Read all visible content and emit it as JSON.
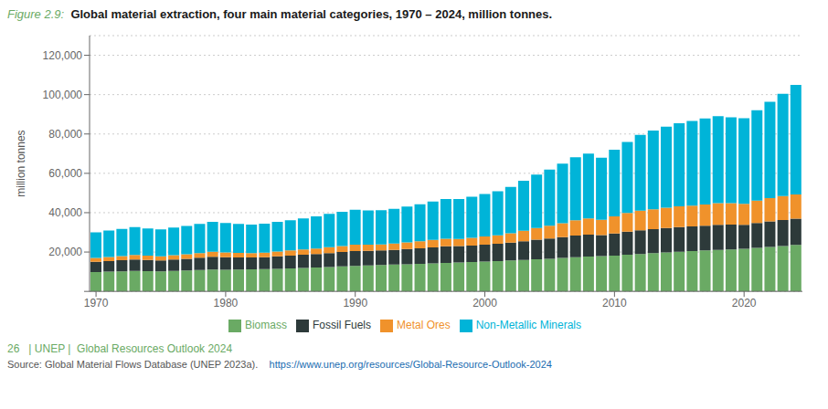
{
  "chart_data": {
    "type": "bar",
    "stacked": true,
    "title": "Global material extraction, four main material categories, 1970 – 2024, million tonnes.",
    "annotations": [
      "Figure 2.9:",
      "26   | UNEP |  Global Resources Outlook 2024",
      "Source: Global Material Flows Database (UNEP 2023a).",
      "https://www.unep.org/resources/Global-Resource-Outlook-2024"
    ],
    "ylabel": "million tonnes",
    "x": [
      1970,
      1971,
      1972,
      1973,
      1974,
      1975,
      1976,
      1977,
      1978,
      1979,
      1980,
      1981,
      1982,
      1983,
      1984,
      1985,
      1986,
      1987,
      1988,
      1989,
      1990,
      1991,
      1992,
      1993,
      1994,
      1995,
      1996,
      1997,
      1998,
      1999,
      2000,
      2001,
      2002,
      2003,
      2004,
      2005,
      2006,
      2007,
      2008,
      2009,
      2010,
      2011,
      2012,
      2013,
      2014,
      2015,
      2016,
      2017,
      2018,
      2019,
      2020,
      2021,
      2022,
      2023,
      2024
    ],
    "xlim": [
      1969.5,
      2024.5
    ],
    "xticks": [
      1970,
      1980,
      1990,
      2000,
      2010,
      2020
    ],
    "ylim": [
      0,
      130000
    ],
    "yticks": [
      {
        "value": 0,
        "label": ""
      },
      {
        "value": 20000,
        "label": "20,000"
      },
      {
        "value": 40000,
        "label": "40,000"
      },
      {
        "value": 60000,
        "label": "60,000"
      },
      {
        "value": 80000,
        "label": "80,000"
      },
      {
        "value": 100000,
        "label": "100,000"
      },
      {
        "value": 120000,
        "label": "120,000"
      }
    ],
    "grid": true,
    "legend": "bottom",
    "series": [
      {
        "name": "Biomass",
        "color": "#6aaa64",
        "values": [
          9800,
          10000,
          10200,
          10400,
          10300,
          10200,
          10400,
          10600,
          10900,
          11100,
          11000,
          11100,
          11200,
          11300,
          11500,
          11700,
          11900,
          12100,
          12400,
          12700,
          13000,
          13200,
          13400,
          13600,
          13800,
          14000,
          14200,
          14500,
          14700,
          14900,
          15200,
          15400,
          15700,
          16000,
          16300,
          16600,
          17000,
          17400,
          17700,
          17900,
          18200,
          18600,
          19000,
          19400,
          19800,
          20200,
          20500,
          20800,
          21100,
          21300,
          21600,
          22100,
          22600,
          23100,
          23600
        ]
      },
      {
        "name": "Fossil Fuels",
        "color": "#2d3a3a",
        "values": [
          5200,
          5400,
          5600,
          5800,
          5700,
          5500,
          5800,
          6000,
          6200,
          6500,
          6400,
          6200,
          6100,
          6100,
          6300,
          6500,
          6700,
          6900,
          7100,
          7300,
          7500,
          7400,
          7400,
          7500,
          7700,
          7900,
          8200,
          8400,
          8300,
          8400,
          8600,
          8800,
          9100,
          9500,
          10000,
          10300,
          10600,
          11000,
          11200,
          10700,
          11200,
          11800,
          12100,
          12200,
          12400,
          12500,
          12500,
          12600,
          12700,
          12600,
          12200,
          12700,
          13000,
          13200,
          13400
        ]
      },
      {
        "name": "Metal Ores",
        "color": "#f0922b",
        "values": [
          2000,
          2100,
          2200,
          2300,
          2200,
          2100,
          2200,
          2300,
          2400,
          2500,
          2400,
          2300,
          2200,
          2300,
          2500,
          2600,
          2700,
          2800,
          3000,
          3100,
          3200,
          3100,
          3100,
          3200,
          3400,
          3600,
          3800,
          3900,
          3700,
          3900,
          4100,
          4300,
          4700,
          5300,
          5900,
          6500,
          7100,
          7800,
          8200,
          7800,
          8700,
          9500,
          9900,
          10100,
          10300,
          10500,
          10600,
          10800,
          11000,
          10900,
          10700,
          11300,
          11800,
          12100,
          12300
        ]
      },
      {
        "name": "Non-Metallic Minerals",
        "color": "#00b4d8",
        "values": [
          13000,
          13400,
          13800,
          14200,
          13800,
          13700,
          14000,
          14400,
          14800,
          15200,
          15000,
          14700,
          14500,
          14700,
          15000,
          15400,
          15800,
          16300,
          16900,
          17400,
          17800,
          17500,
          17400,
          17600,
          18200,
          18800,
          19500,
          20100,
          20200,
          20900,
          21600,
          22400,
          23600,
          25400,
          27200,
          28500,
          30200,
          32000,
          32900,
          31500,
          33900,
          36100,
          38500,
          40000,
          41200,
          42300,
          43000,
          43700,
          44200,
          43700,
          43500,
          46000,
          49000,
          52000,
          55700
        ]
      }
    ]
  }
}
